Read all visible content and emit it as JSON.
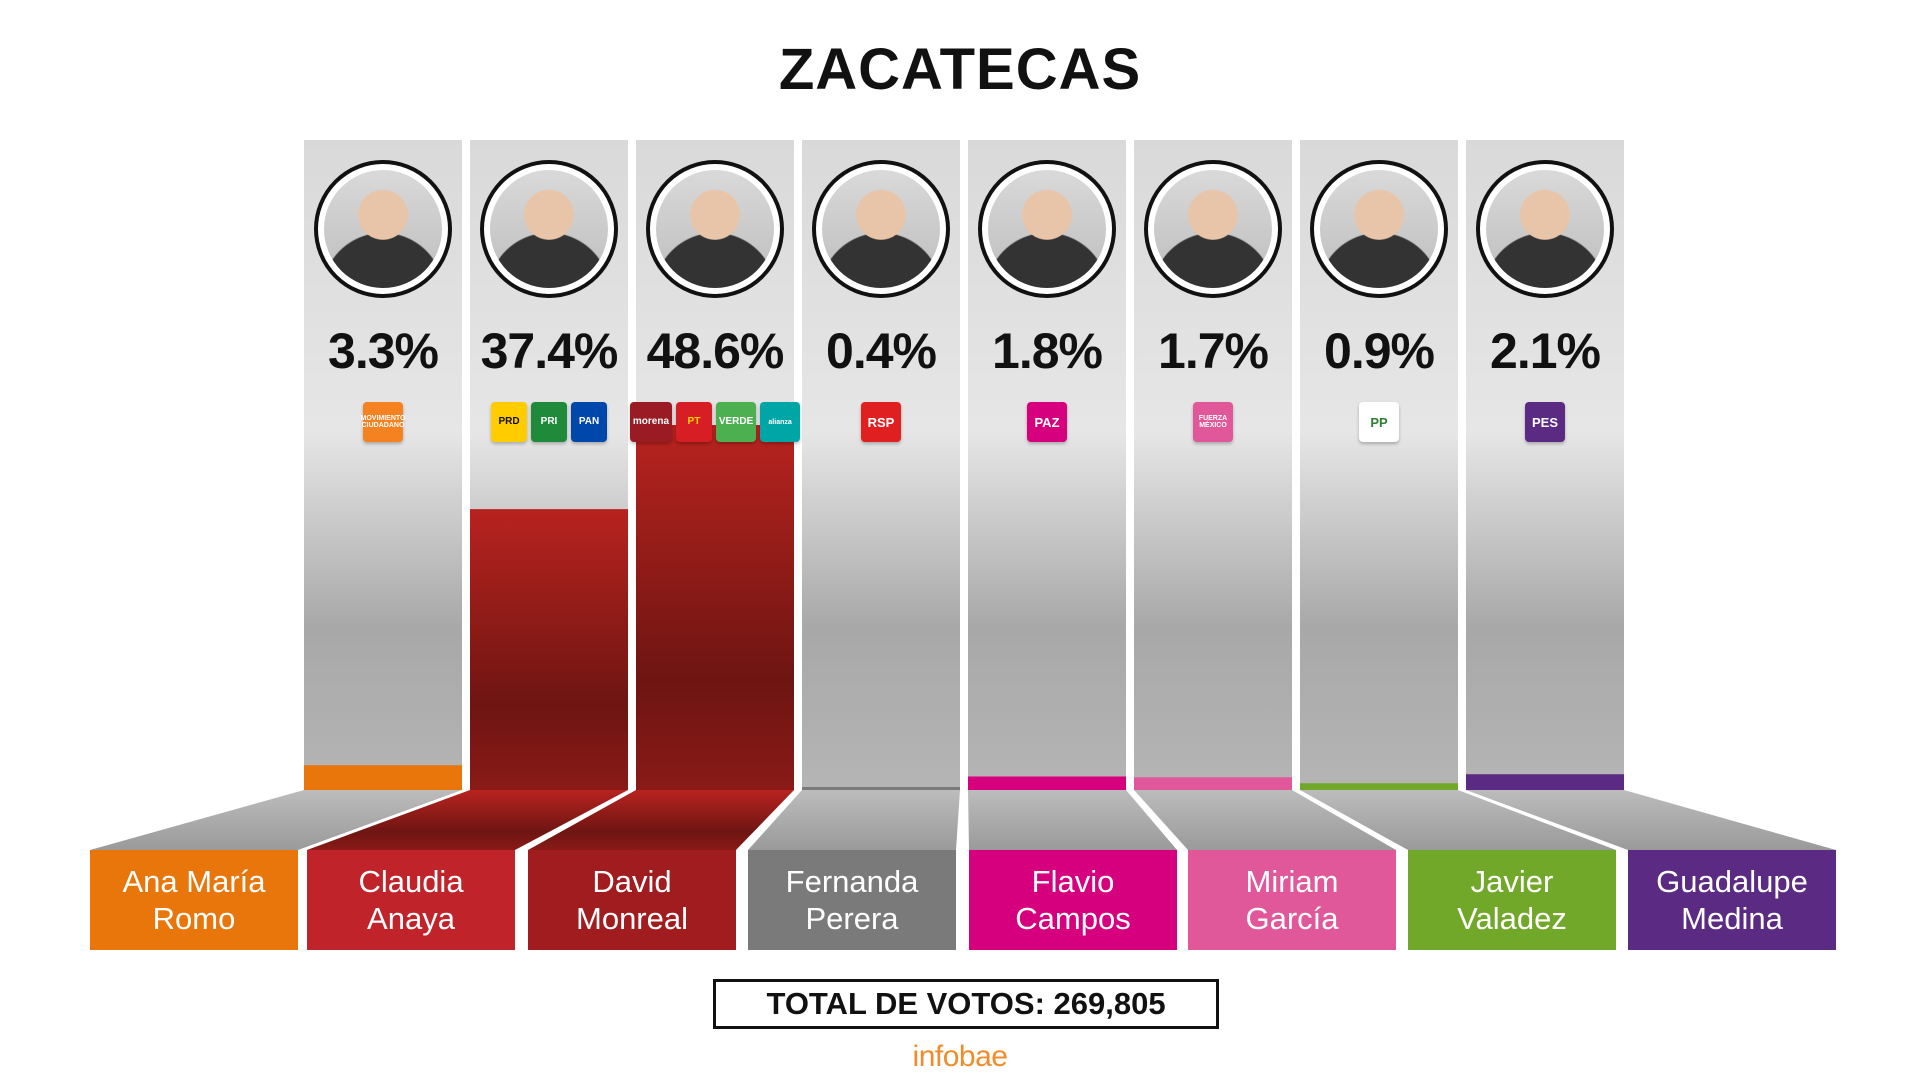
{
  "title": "ZACATECAS",
  "total_label": "TOTAL DE VOTOS: 269,805",
  "brand": "infobae",
  "chart_data": {
    "type": "bar",
    "title": "ZACATECAS",
    "categories": [
      "Ana María Romo",
      "Claudia Anaya",
      "David Monreal",
      "Fernanda Perera",
      "Flavio Campos",
      "Miriam García",
      "Javier Valadez",
      "Guadalupe Medina"
    ],
    "values": [
      3.3,
      37.4,
      48.6,
      0.4,
      1.8,
      1.7,
      0.9,
      2.1
    ],
    "value_labels": [
      "3.3%",
      "37.4%",
      "48.6%",
      "0.4%",
      "1.8%",
      "1.7%",
      "0.9%",
      "2.1%"
    ],
    "ylim": [
      0,
      48.6
    ],
    "grid": false,
    "legend": "none"
  },
  "candidates": [
    {
      "line1": "Ana María",
      "line2": "Romo",
      "pct": "3.3%",
      "color": "#e8760a",
      "logos": [
        {
          "text": "MOVIMIENTO CIUDADANO",
          "bg": "#f58220",
          "icon": "mc-logo"
        }
      ]
    },
    {
      "line1": "Claudia",
      "line2": "Anaya",
      "pct": "37.4%",
      "color": "#c0242a",
      "logos": [
        {
          "text": "PRD",
          "bg": "#ffcc00",
          "fg": "#111",
          "icon": "prd-logo"
        },
        {
          "text": "PRI",
          "bg": "#1f8b3a",
          "icon": "pri-logo"
        },
        {
          "text": "PAN",
          "bg": "#0047ab",
          "icon": "pan-logo"
        }
      ]
    },
    {
      "line1": "David",
      "line2": "Monreal",
      "pct": "48.6%",
      "color": "#a01c1f",
      "logos": [
        {
          "text": "morena",
          "bg": "#9b1b24",
          "icon": "morena-logo"
        },
        {
          "text": "PT",
          "bg": "#d81e25",
          "fg": "#ffd400",
          "icon": "pt-logo"
        },
        {
          "text": "VERDE",
          "bg": "#4caf50",
          "icon": "verde-logo"
        },
        {
          "text": "alianza",
          "bg": "#00a6a6",
          "icon": "nueva-alianza-logo"
        }
      ]
    },
    {
      "line1": "Fernanda",
      "line2": "Perera",
      "pct": "0.4%",
      "color": "#7a7a7a",
      "logos": [
        {
          "text": "RSP",
          "bg": "#e02020",
          "icon": "rsp-logo"
        }
      ]
    },
    {
      "line1": "Flavio",
      "line2": "Campos",
      "pct": "1.8%",
      "color": "#d6007f",
      "logos": [
        {
          "text": "PAZ",
          "bg": "#d6007f",
          "icon": "paz-logo"
        }
      ]
    },
    {
      "line1": "Miriam",
      "line2": "García",
      "pct": "1.7%",
      "color": "#e0589a",
      "logos": [
        {
          "text": "FUERZA MÉXICO",
          "bg": "#e0589a",
          "icon": "fuerza-mexico-logo"
        }
      ]
    },
    {
      "line1": "Javier",
      "line2": "Valadez",
      "pct": "0.9%",
      "color": "#72a82a",
      "logos": [
        {
          "text": "PP",
          "bg": "#ffffff",
          "fg": "#2e7d32",
          "icon": "pp-logo"
        }
      ]
    },
    {
      "line1": "Guadalupe",
      "line2": "Medina",
      "pct": "2.1%",
      "color": "#5b2a82",
      "logos": [
        {
          "text": "PES",
          "bg": "#5b2a82",
          "icon": "pes-logo"
        }
      ]
    }
  ]
}
